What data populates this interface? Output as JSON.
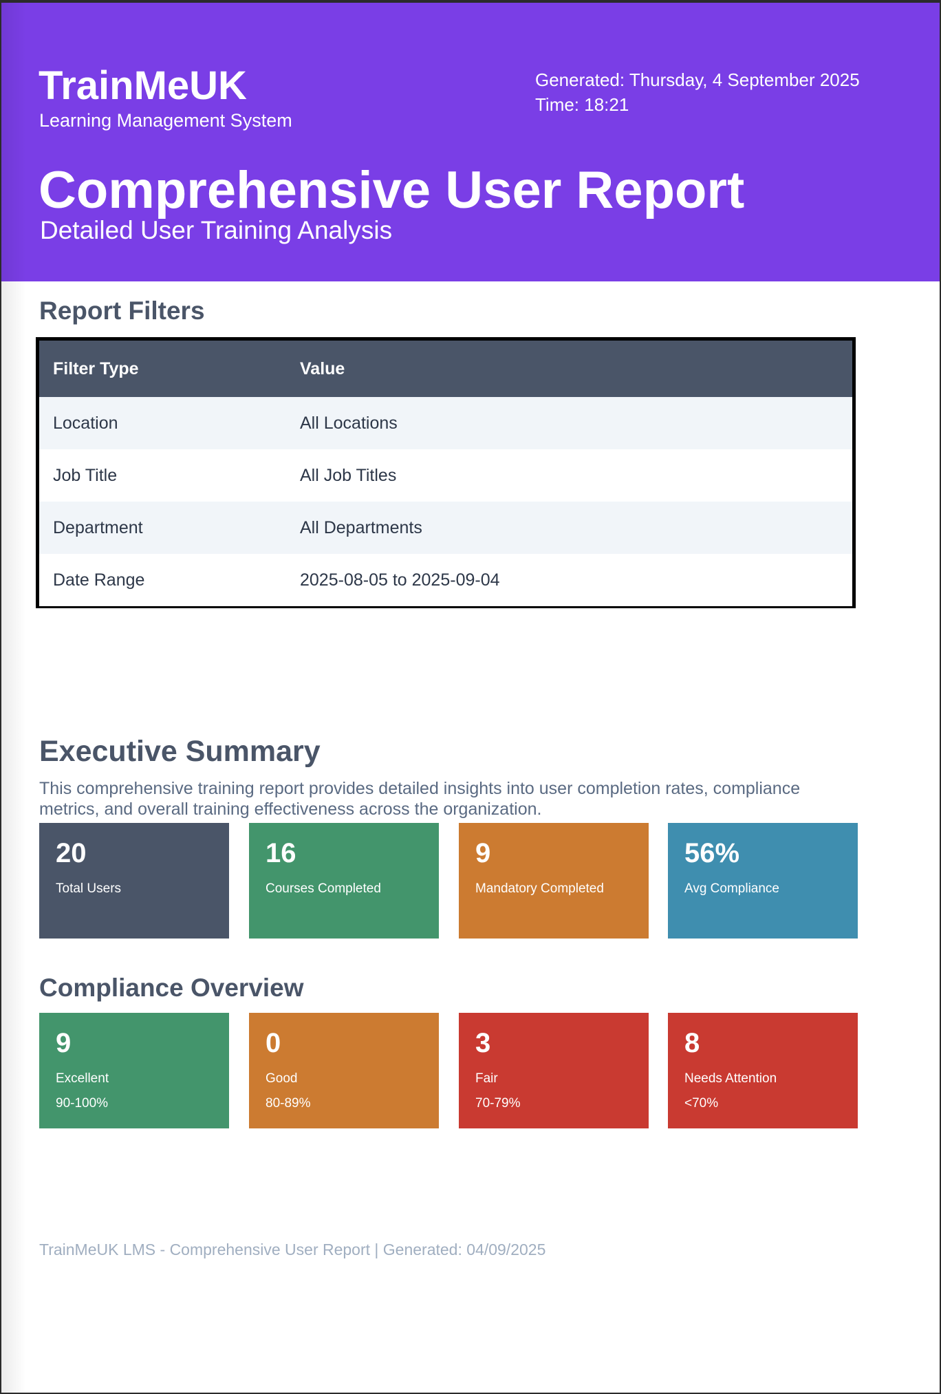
{
  "header": {
    "brand_name": "TrainMeUK",
    "brand_subtitle": "Learning Management System",
    "generated": "Generated: Thursday, 4 September 2025",
    "time": "Time: 18:21",
    "report_title": "Comprehensive User Report",
    "report_subtitle": "Detailed User Training Analysis",
    "color": "#7a3ee6"
  },
  "filters": {
    "heading": "Report Filters",
    "columns": [
      "Filter Type",
      "Value"
    ],
    "rows": [
      {
        "type": "Location",
        "value": "All Locations"
      },
      {
        "type": "Job Title",
        "value": "All Job Titles"
      },
      {
        "type": "Department",
        "value": "All Departments"
      },
      {
        "type": "Date Range",
        "value": "2025-08-05 to 2025-09-04"
      }
    ]
  },
  "summary": {
    "heading": "Executive Summary",
    "text": "This comprehensive training report provides detailed insights into user completion rates, compliance metrics, and overall training effectiveness across the organization.",
    "cards": [
      {
        "value": "20",
        "label": "Total Users",
        "color": "#4a5568"
      },
      {
        "value": "16",
        "label": "Courses Completed",
        "color": "#43956c"
      },
      {
        "value": "9",
        "label": "Mandatory Completed",
        "color": "#cc7b31"
      },
      {
        "value": "56%",
        "label": "Avg Compliance",
        "color": "#3f8eaf"
      }
    ]
  },
  "compliance": {
    "heading": "Compliance Overview",
    "cards": [
      {
        "value": "9",
        "label": "Excellent",
        "range": "90-100%",
        "color": "#43956c"
      },
      {
        "value": "0",
        "label": "Good",
        "range": "80-89%",
        "color": "#cc7b31"
      },
      {
        "value": "3",
        "label": "Fair",
        "range": "70-79%",
        "color": "#c93a31"
      },
      {
        "value": "8",
        "label": "Needs Attention",
        "range": "<70%",
        "color": "#c93a31"
      }
    ]
  },
  "footer": {
    "text": "TrainMeUK LMS - Comprehensive User Report | Generated: 04/09/2025"
  }
}
